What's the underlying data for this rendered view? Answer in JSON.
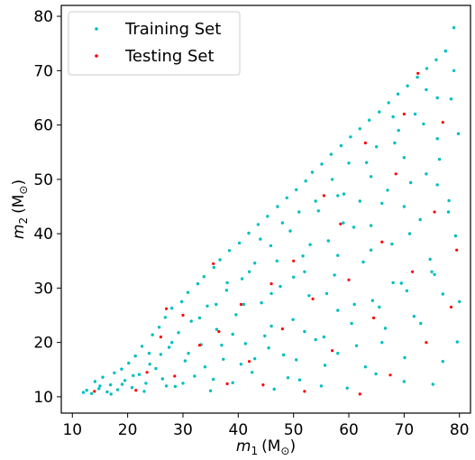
{
  "chart_data": {
    "type": "scatter",
    "title": "",
    "xlabel_main": "m",
    "xlabel_sub": "1",
    "xlabel_unit": "(M",
    "xlabel_unit_sub": "⊙",
    "xlabel_close": ")",
    "ylabel_main": "m",
    "ylabel_sub": "2",
    "ylabel_unit": "(M",
    "ylabel_unit_sub": "⊙",
    "ylabel_close": ")",
    "xlim": [
      8,
      82
    ],
    "ylim": [
      7,
      82
    ],
    "xticks": [
      10,
      20,
      30,
      40,
      50,
      60,
      70,
      80
    ],
    "yticks": [
      10,
      20,
      30,
      40,
      50,
      60,
      70,
      80
    ],
    "grid": false,
    "legend_position": "top-left",
    "series": [
      {
        "name": "Training Set",
        "color": "#00bfbf",
        "points": [
          [
            12,
            10.8
          ],
          [
            12.6,
            11.2
          ],
          [
            13.5,
            10.6
          ],
          [
            14.1,
            12.8
          ],
          [
            14.8,
            11.5
          ],
          [
            15.5,
            13.6
          ],
          [
            16.3,
            10.9
          ],
          [
            16.9,
            12.2
          ],
          [
            17.6,
            14.4
          ],
          [
            18.2,
            11.3
          ],
          [
            18.9,
            15.1
          ],
          [
            19.5,
            13.0
          ],
          [
            20.2,
            16.2
          ],
          [
            20.8,
            11.7
          ],
          [
            21.4,
            17.5
          ],
          [
            22.1,
            14.1
          ],
          [
            22.6,
            19.3
          ],
          [
            23.3,
            12.5
          ],
          [
            23.9,
            18.0
          ],
          [
            24.5,
            21.4
          ],
          [
            25.1,
            15.2
          ],
          [
            25.7,
            22.8
          ],
          [
            26.3,
            13.3
          ],
          [
            26.8,
            24.6
          ],
          [
            27.5,
            19.1
          ],
          [
            28.0,
            26.3
          ],
          [
            28.6,
            11.9
          ],
          [
            29.2,
            21.8
          ],
          [
            29.8,
            27.5
          ],
          [
            30.4,
            16.6
          ],
          [
            30.9,
            29.2
          ],
          [
            31.5,
            23.9
          ],
          [
            32.1,
            13.8
          ],
          [
            32.7,
            30.8
          ],
          [
            33.3,
            19.6
          ],
          [
            33.8,
            32.1
          ],
          [
            34.4,
            26.7
          ],
          [
            35.0,
            11.1
          ],
          [
            35.6,
            33.8
          ],
          [
            36.1,
            22.4
          ],
          [
            36.7,
            35.2
          ],
          [
            37.3,
            16.9
          ],
          [
            37.9,
            29.6
          ],
          [
            38.4,
            36.9
          ],
          [
            39.0,
            12.6
          ],
          [
            39.6,
            25.1
          ],
          [
            40.2,
            38.3
          ],
          [
            40.7,
            31.7
          ],
          [
            41.3,
            19.8
          ],
          [
            41.9,
            40.1
          ],
          [
            42.5,
            14.5
          ],
          [
            43.0,
            34.6
          ],
          [
            43.6,
            41.7
          ],
          [
            44.2,
            27.3
          ],
          [
            44.8,
            21.2
          ],
          [
            45.3,
            43.2
          ],
          [
            45.9,
            37.8
          ],
          [
            46.5,
            11.4
          ],
          [
            47.1,
            45.0
          ],
          [
            47.6,
            30.3
          ],
          [
            48.2,
            17.7
          ],
          [
            48.8,
            46.6
          ],
          [
            49.4,
            40.5
          ],
          [
            49.9,
            24.2
          ],
          [
            50.5,
            48.1
          ],
          [
            51.1,
            13.1
          ],
          [
            51.7,
            35.9
          ],
          [
            52.2,
            49.7
          ],
          [
            52.8,
            28.6
          ],
          [
            53.4,
            51.3
          ],
          [
            54.0,
            20.5
          ],
          [
            54.5,
            44.2
          ],
          [
            55.1,
            52.8
          ],
          [
            55.7,
            15.8
          ],
          [
            56.3,
            38.7
          ],
          [
            56.8,
            54.6
          ],
          [
            57.4,
            32.4
          ],
          [
            58.0,
            25.9
          ],
          [
            58.6,
            56.2
          ],
          [
            59.1,
            47.3
          ],
          [
            59.7,
            11.6
          ],
          [
            60.3,
            57.8
          ],
          [
            60.9,
            41.2
          ],
          [
            61.4,
            19.4
          ],
          [
            62.0,
            59.3
          ],
          [
            62.6,
            34.8
          ],
          [
            63.2,
            53.1
          ],
          [
            63.7,
            60.9
          ],
          [
            64.3,
            27.7
          ],
          [
            64.9,
            14.2
          ],
          [
            65.5,
            62.4
          ],
          [
            66.0,
            45.6
          ],
          [
            66.6,
            22.6
          ],
          [
            67.2,
            64.1
          ],
          [
            67.8,
            38.1
          ],
          [
            68.3,
            56.7
          ],
          [
            68.9,
            65.7
          ],
          [
            69.5,
            30.9
          ],
          [
            70.1,
            17.2
          ],
          [
            70.6,
            67.2
          ],
          [
            71.2,
            49.4
          ],
          [
            71.8,
            24.8
          ],
          [
            72.4,
            68.8
          ],
          [
            72.9,
            42.6
          ],
          [
            73.5,
            60.2
          ],
          [
            74.1,
            70.4
          ],
          [
            74.7,
            35.3
          ],
          [
            75.2,
            12.3
          ],
          [
            75.8,
            72.0
          ],
          [
            76.4,
            53.7
          ],
          [
            77.0,
            28.9
          ],
          [
            77.5,
            73.6
          ],
          [
            78.1,
            46.1
          ],
          [
            78.5,
            64.8
          ],
          [
            79.0,
            77.9
          ],
          [
            79.3,
            39.6
          ],
          [
            79.6,
            20.1
          ],
          [
            79.8,
            58.4
          ],
          [
            15.0,
            12.0
          ],
          [
            17.0,
            10.5
          ],
          [
            19.0,
            12.3
          ],
          [
            21.0,
            13.9
          ],
          [
            23.0,
            11.0
          ],
          [
            24.0,
            16.0
          ],
          [
            26.0,
            17.8
          ],
          [
            27.0,
            12.0
          ],
          [
            28.0,
            20.0
          ],
          [
            30.0,
            12.5
          ],
          [
            31.0,
            18.0
          ],
          [
            33.0,
            24.5
          ],
          [
            34.0,
            15.5
          ],
          [
            36.0,
            27.0
          ],
          [
            37.0,
            19.5
          ],
          [
            38.0,
            31.0
          ],
          [
            39.0,
            21.5
          ],
          [
            41.0,
            27.0
          ],
          [
            42.0,
            33.0
          ],
          [
            43.0,
            17.0
          ],
          [
            44.0,
            39.0
          ],
          [
            46.0,
            23.0
          ],
          [
            47.0,
            35.0
          ],
          [
            48.0,
            42.0
          ],
          [
            49.0,
            13.5
          ],
          [
            50.0,
            32.0
          ],
          [
            51.0,
            44.0
          ],
          [
            52.0,
            22.0
          ],
          [
            53.0,
            38.0
          ],
          [
            54.0,
            46.0
          ],
          [
            55.0,
            12.0
          ],
          [
            56.0,
            29.0
          ],
          [
            57.0,
            50.0
          ],
          [
            58.0,
            18.0
          ],
          [
            59.0,
            42.0
          ],
          [
            60.0,
            53.0
          ],
          [
            61.0,
            27.0
          ],
          [
            62.0,
            46.0
          ],
          [
            63.0,
            15.5
          ],
          [
            64.0,
            37.0
          ],
          [
            65.0,
            56.0
          ],
          [
            66.0,
            20.0
          ],
          [
            67.0,
            48.0
          ],
          [
            68.0,
            31.0
          ],
          [
            69.0,
            59.0
          ],
          [
            70.0,
            12.8
          ],
          [
            71.0,
            40.0
          ],
          [
            72.0,
            62.0
          ],
          [
            73.0,
            23.5
          ],
          [
            74.0,
            51.0
          ],
          [
            75.0,
            33.0
          ],
          [
            76.0,
            65.0
          ],
          [
            77.0,
            16.5
          ],
          [
            78.0,
            44.0
          ],
          [
            79.0,
            70.0
          ],
          [
            80.0,
            27.5
          ],
          [
            35.5,
            13.2
          ],
          [
            40.5,
            16.0
          ],
          [
            45.5,
            19.0
          ],
          [
            50.5,
            16.8
          ],
          [
            55.5,
            21.0
          ],
          [
            60.5,
            23.5
          ],
          [
            65.5,
            26.5
          ],
          [
            70.5,
            29.5
          ],
          [
            75.5,
            32.5
          ],
          [
            46.0,
            29.0
          ],
          [
            52.0,
            33.0
          ],
          [
            58.0,
            36.0
          ],
          [
            64.0,
            41.5
          ],
          [
            70.0,
            45.0
          ],
          [
            76.0,
            49.0
          ],
          [
            58.0,
            47.0
          ],
          [
            64.0,
            50.5
          ],
          [
            70.0,
            54.0
          ],
          [
            76.0,
            57.5
          ],
          [
            68.0,
            61.5
          ],
          [
            74.0,
            66.5
          ]
        ]
      },
      {
        "name": "Testing Set",
        "color": "#ff0000",
        "points": [
          [
            14.0,
            11.0
          ],
          [
            21.5,
            11.2
          ],
          [
            23.5,
            14.5
          ],
          [
            26.0,
            21.0
          ],
          [
            27.0,
            26.2
          ],
          [
            28.5,
            13.8
          ],
          [
            30.0,
            25.0
          ],
          [
            33.0,
            19.5
          ],
          [
            35.5,
            34.5
          ],
          [
            36.5,
            22.0
          ],
          [
            38.0,
            12.4
          ],
          [
            40.5,
            27.0
          ],
          [
            42.0,
            16.5
          ],
          [
            44.5,
            12.2
          ],
          [
            46.0,
            30.8
          ],
          [
            48.0,
            22.5
          ],
          [
            50.0,
            35.0
          ],
          [
            52.0,
            11.0
          ],
          [
            53.5,
            28.0
          ],
          [
            55.5,
            47.0
          ],
          [
            57.0,
            18.5
          ],
          [
            58.5,
            41.8
          ],
          [
            60.0,
            31.5
          ],
          [
            62.0,
            10.5
          ],
          [
            63.0,
            56.7
          ],
          [
            64.5,
            24.5
          ],
          [
            66.0,
            38.5
          ],
          [
            67.5,
            14.0
          ],
          [
            68.5,
            51.0
          ],
          [
            70.0,
            62.0
          ],
          [
            71.5,
            33.0
          ],
          [
            72.5,
            69.5
          ],
          [
            74.0,
            20.0
          ],
          [
            75.5,
            44.0
          ],
          [
            77.0,
            60.5
          ],
          [
            78.5,
            26.5
          ],
          [
            79.5,
            37.0
          ]
        ]
      }
    ]
  }
}
